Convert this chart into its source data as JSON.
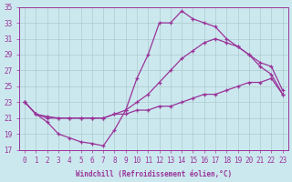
{
  "xlabel": "Windchill (Refroidissement éolien,°C)",
  "xlim_min": -0.5,
  "xlim_max": 23.5,
  "ylim_min": 17,
  "ylim_max": 35,
  "yticks": [
    17,
    19,
    21,
    23,
    25,
    27,
    29,
    31,
    33,
    35
  ],
  "xticks": [
    0,
    1,
    2,
    3,
    4,
    5,
    6,
    7,
    8,
    9,
    10,
    11,
    12,
    13,
    14,
    15,
    16,
    17,
    18,
    19,
    20,
    21,
    22,
    23
  ],
  "bg_color": "#cce8ef",
  "line_color": "#993399",
  "grid_color": "#aacccc",
  "line1_x": [
    0,
    1,
    2,
    3,
    4,
    5,
    6,
    7,
    8,
    9,
    10,
    11,
    12,
    13,
    14,
    15,
    16,
    17,
    18,
    19,
    20,
    21,
    22,
    23
  ],
  "line1_y": [
    23.0,
    21.5,
    21.2,
    21.0,
    21.0,
    21.0,
    21.0,
    21.0,
    21.5,
    21.5,
    22.0,
    22.0,
    22.5,
    22.5,
    23.0,
    23.5,
    24.0,
    24.0,
    24.5,
    25.0,
    25.5,
    25.5,
    26.0,
    24.0
  ],
  "line2_x": [
    0,
    1,
    2,
    3,
    4,
    5,
    6,
    7,
    8,
    9,
    10,
    11,
    12,
    13,
    14,
    15,
    16,
    17,
    18,
    19,
    20,
    21,
    22,
    23
  ],
  "line2_y": [
    23.0,
    21.5,
    21.0,
    21.0,
    21.0,
    21.0,
    21.0,
    21.0,
    21.5,
    22.0,
    23.0,
    24.0,
    25.5,
    27.0,
    28.5,
    29.5,
    30.5,
    31.0,
    30.5,
    30.0,
    29.0,
    28.0,
    27.5,
    24.5
  ],
  "line3_x": [
    0,
    1,
    2,
    3,
    4,
    5,
    6,
    7,
    8,
    9,
    10,
    11,
    12,
    13,
    14,
    15,
    16,
    17,
    18,
    19,
    20,
    21,
    22,
    23
  ],
  "line3_y": [
    23.0,
    21.5,
    20.5,
    19.0,
    18.5,
    18.0,
    17.8,
    17.5,
    19.5,
    22.0,
    26.0,
    29.0,
    33.0,
    33.0,
    34.5,
    33.5,
    33.0,
    32.5,
    31.0,
    30.0,
    29.0,
    27.5,
    26.5,
    24.0
  ]
}
